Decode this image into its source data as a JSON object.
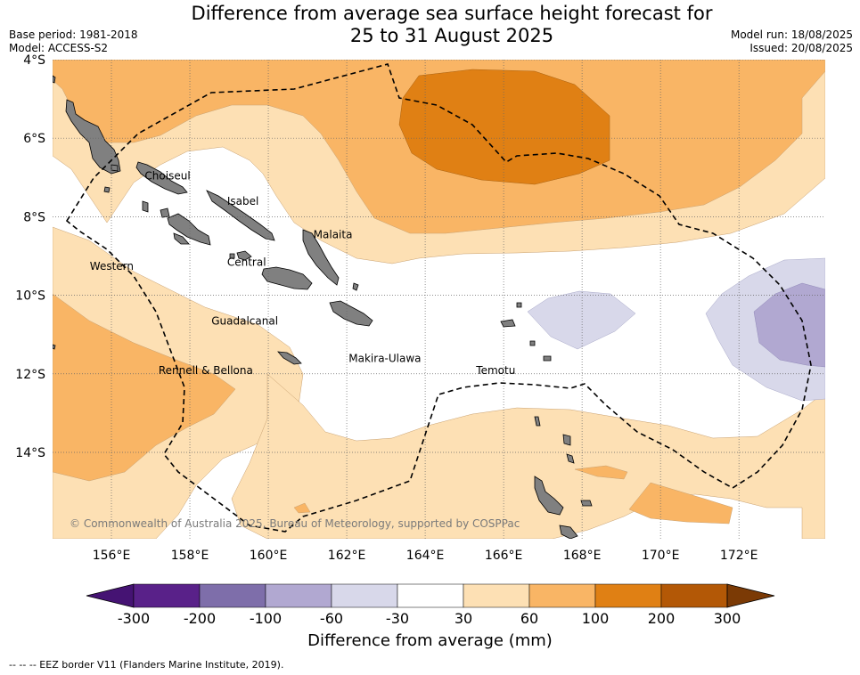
{
  "title": {
    "line1": "Difference from average sea surface height forecast for",
    "line2": "25 to 31 August 2025"
  },
  "meta": {
    "base_period": "Base period: 1981-2018",
    "model": "Model: ACCESS-S2",
    "model_run": "Model run: 18/08/2025",
    "issued": "Issued: 20/08/2025"
  },
  "map": {
    "lon_range": [
      154.5,
      174.2
    ],
    "lat_range": [
      -16.2,
      -4
    ],
    "lon_ticks": [
      {
        "lon": 156,
        "label": "156°E"
      },
      {
        "lon": 158,
        "label": "158°E"
      },
      {
        "lon": 160,
        "label": "160°E"
      },
      {
        "lon": 162,
        "label": "162°E"
      },
      {
        "lon": 164,
        "label": "164°E"
      },
      {
        "lon": 166,
        "label": "166°E"
      },
      {
        "lon": 168,
        "label": "168°E"
      },
      {
        "lon": 170,
        "label": "170°E"
      },
      {
        "lon": 172,
        "label": "172°E"
      }
    ],
    "lat_ticks": [
      {
        "lat": -4,
        "label": "4°S"
      },
      {
        "lat": -6,
        "label": "6°S"
      },
      {
        "lat": -8,
        "label": "8°S"
      },
      {
        "lat": -10,
        "label": "10°S"
      },
      {
        "lat": -12,
        "label": "12°S"
      },
      {
        "lat": -14,
        "label": "14°S"
      }
    ],
    "province_labels": [
      {
        "name": "Choiseul",
        "lon": 156.85,
        "lat": -7.05
      },
      {
        "name": "Isabel",
        "lon": 158.95,
        "lat": -7.7
      },
      {
        "name": "Malaita",
        "lon": 161.15,
        "lat": -8.55
      },
      {
        "name": "Western",
        "lon": 155.45,
        "lat": -9.35
      },
      {
        "name": "Central",
        "lon": 158.95,
        "lat": -9.25
      },
      {
        "name": "Guadalcanal",
        "lon": 158.55,
        "lat": -10.75
      },
      {
        "name": "Makira-Ulawa",
        "lon": 162.05,
        "lat": -11.7
      },
      {
        "name": "Rennell & Bellona",
        "lon": 157.2,
        "lat": -12
      },
      {
        "name": "Temotu",
        "lon": 165.3,
        "lat": -12
      }
    ],
    "copyright": "© Commonwealth of Australia 2025, Bureau of Meteorology, supported by COSPPac",
    "colors": {
      "above_60_100": "#f9b565",
      "above_30_60": "#fde0b4",
      "above_100_200": "#e08014",
      "below_60_30": "#d8d8ea",
      "below_100_60": "#b1a8d1",
      "land": "#808080",
      "gridline": "#888888"
    }
  },
  "colorbar": {
    "title": "Difference from average (mm)",
    "ticks": [
      "-300",
      "-200",
      "-100",
      "-60",
      "-30",
      "30",
      "60",
      "100",
      "200",
      "300"
    ],
    "colors": [
      "#451373",
      "#592189",
      "#7e6eaa",
      "#b1a8d1",
      "#d8d8ea",
      "#ffffff",
      "#fde0b4",
      "#f9b565",
      "#e08014",
      "#b35806",
      "#7b3a05"
    ]
  },
  "footnote": "--  --  -- EEZ border V11 (Flanders Marine Institute, 2019)."
}
